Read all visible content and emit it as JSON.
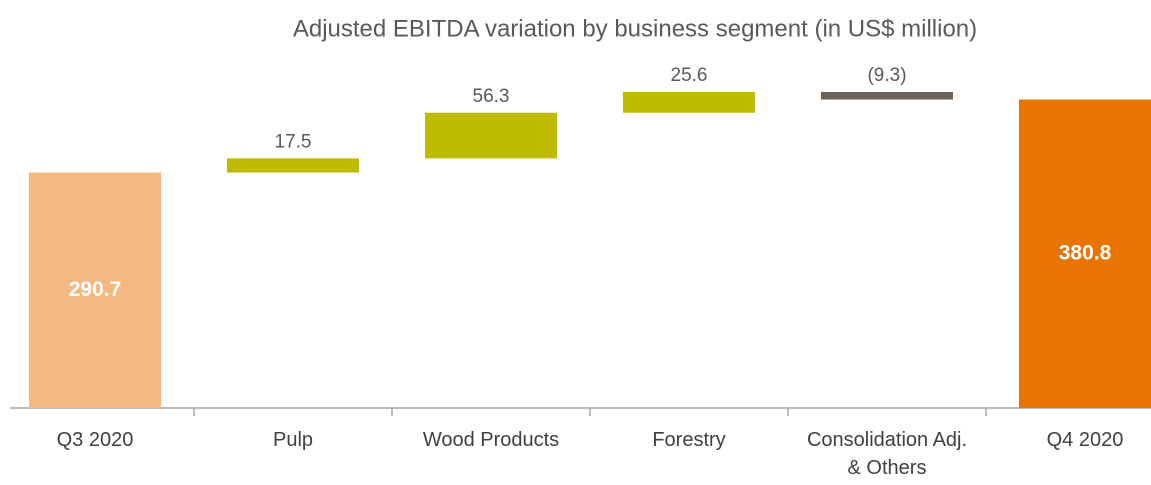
{
  "chart_data": {
    "type": "waterfall",
    "title": "Adjusted EBITDA variation by business segment (in US$ million)",
    "categories": [
      "Q3 2020",
      "Pulp",
      "Wood Products",
      "Forestry",
      "Consolidation Adj. & Others",
      "Q4 2020"
    ],
    "values": [
      290.7,
      17.5,
      56.3,
      25.6,
      -9.3,
      380.8
    ],
    "value_labels": [
      "290.7",
      "17.5",
      "56.3",
      "25.6",
      "(9.3)",
      "380.8"
    ],
    "total_bars": [
      true,
      false,
      false,
      false,
      false,
      true
    ],
    "colors": [
      "#f4b982",
      "#bfbc00",
      "#bfbc00",
      "#bfbc00",
      "#6b625a",
      "#e87503"
    ]
  }
}
